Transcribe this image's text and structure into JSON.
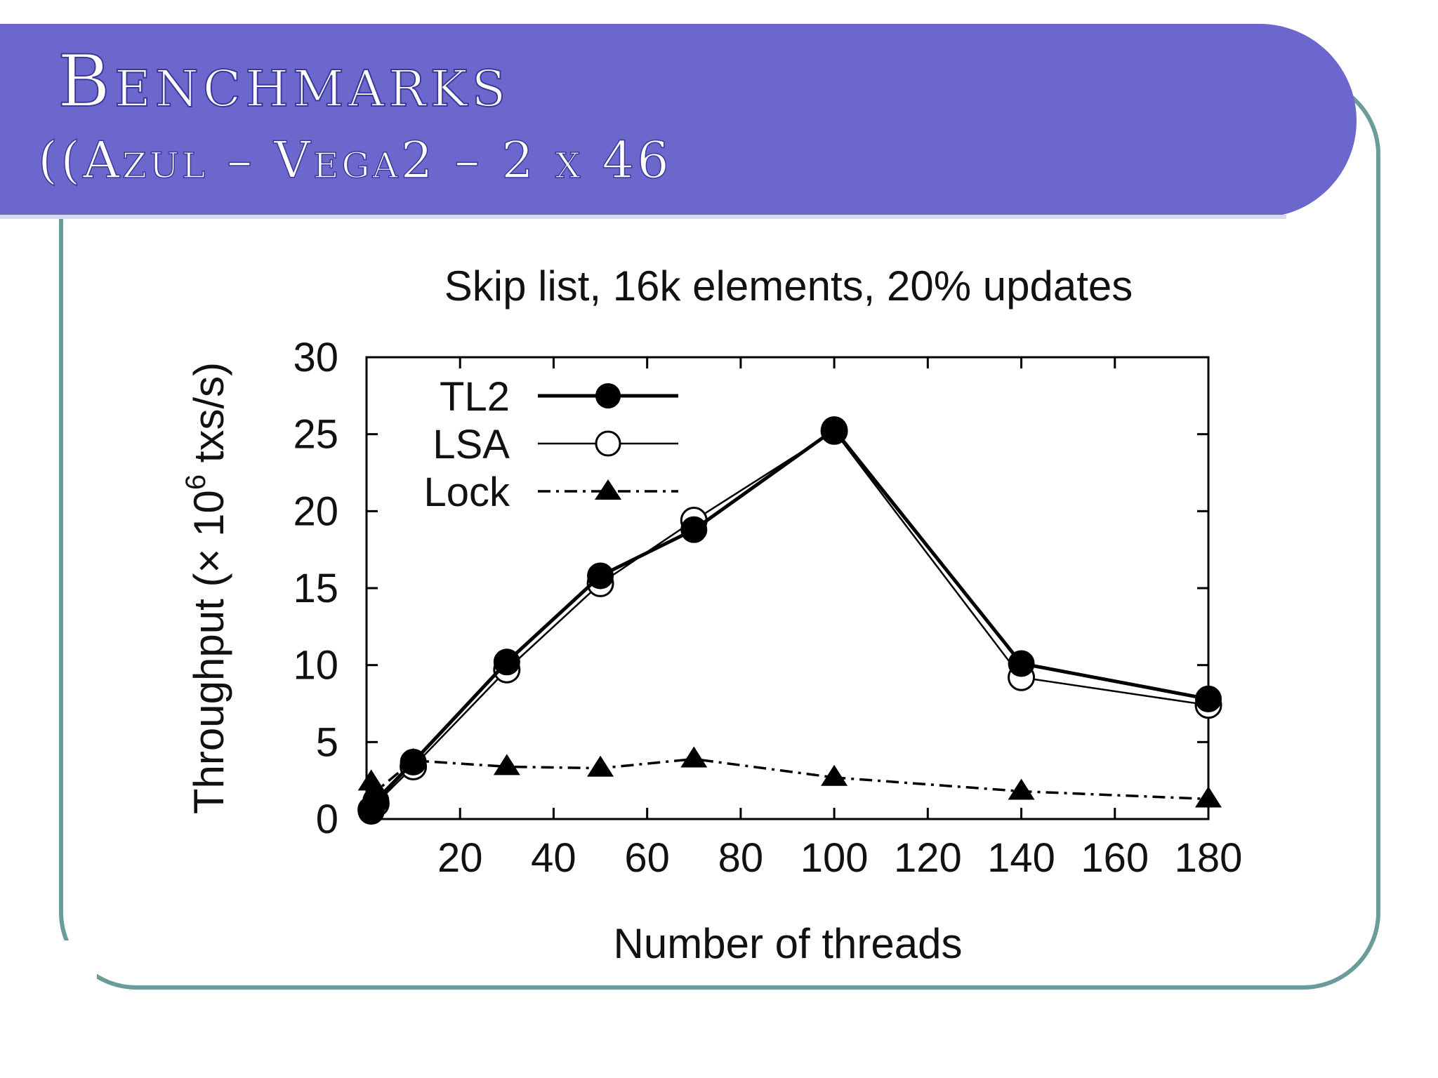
{
  "slide": {
    "title": "Benchmarks",
    "subtitle": "((Azul – Vega2 – 2 x 46"
  },
  "colors": {
    "banner": "#6b67cc",
    "frame": "#6a9c9c",
    "text_on_banner": "#ffffff",
    "series_line": "#000000"
  },
  "chart_data": {
    "type": "line",
    "title": "Skip list, 16k elements, 20% updates",
    "xlabel": "Number of threads",
    "ylabel_main": "Throughput (× 10",
    "ylabel_sup": "6",
    "ylabel_tail": " txs/s)",
    "xlim": [
      0,
      180
    ],
    "ylim": [
      0,
      30
    ],
    "xticks": [
      20,
      40,
      60,
      80,
      100,
      120,
      140,
      160,
      180
    ],
    "yticks": [
      0,
      5,
      10,
      15,
      20,
      25,
      30
    ],
    "grid": false,
    "legend_position": "top-left",
    "series": [
      {
        "name": "TL2",
        "marker": "filled-circle",
        "line": "solid-thick",
        "x": [
          1,
          2,
          10,
          30,
          50,
          70,
          100,
          140,
          180
        ],
        "y": [
          0.5,
          1.2,
          3.7,
          10.2,
          15.8,
          18.8,
          25.3,
          10.1,
          7.8
        ]
      },
      {
        "name": "LSA",
        "marker": "open-circle",
        "line": "solid-thin",
        "x": [
          1,
          2,
          10,
          30,
          50,
          70,
          100,
          140,
          180
        ],
        "y": [
          0.6,
          1.0,
          3.4,
          9.7,
          15.3,
          19.4,
          25.2,
          9.2,
          7.4
        ]
      },
      {
        "name": "Lock",
        "marker": "filled-triangle",
        "line": "dash-dot",
        "x": [
          1,
          2,
          10,
          30,
          50,
          70,
          100,
          140,
          180
        ],
        "y": [
          2.4,
          1.8,
          3.8,
          3.4,
          3.3,
          3.9,
          2.7,
          1.8,
          1.3
        ]
      }
    ]
  }
}
